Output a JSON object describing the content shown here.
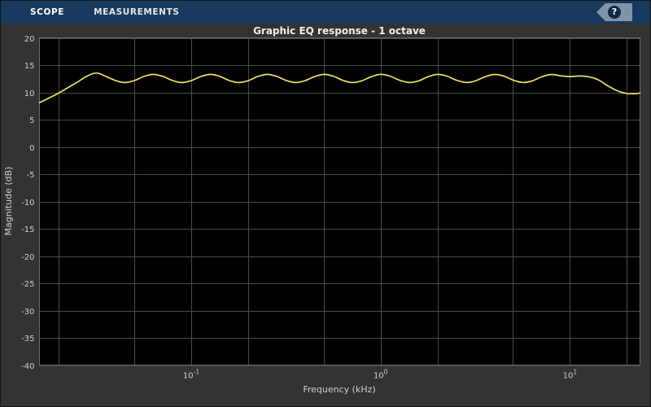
{
  "toolbar": {
    "tabs": [
      {
        "label": "SCOPE",
        "active": true
      },
      {
        "label": "MEASUREMENTS",
        "active": false
      }
    ],
    "help_label": "?"
  },
  "colors": {
    "toolbar_bg": "#173a5e",
    "figure_bg": "#333333",
    "axes_bg": "#000000",
    "grid": "#4a4a4a",
    "axes_box": "#6b6b6b",
    "tick_text": "#cfcfcf",
    "title_text": "#efefef",
    "line": "#f1df63",
    "help_badge_bg": "#7f94aa",
    "help_circle_bg": "#0f2a44"
  },
  "chart_data": {
    "type": "line",
    "title": "Graphic EQ response - 1 octave",
    "xlabel": "Frequency (kHz)",
    "ylabel": "Magnitude (dB)",
    "x_scale": "log",
    "xlim": [
      0.0158,
      23.44
    ],
    "ylim": [
      -40,
      20
    ],
    "y_ticks": [
      20,
      15,
      10,
      5,
      0,
      -5,
      -10,
      -15,
      -20,
      -25,
      -30,
      -35,
      -40
    ],
    "x_ticks": [
      {
        "value": 0.1,
        "label_base": "10",
        "label_exp": "-1"
      },
      {
        "value": 1,
        "label_base": "10",
        "label_exp": "0"
      },
      {
        "value": 10,
        "label_base": "10",
        "label_exp": "1"
      }
    ],
    "x_gridlines": [
      0.02,
      0.05,
      0.1,
      0.2,
      0.5,
      1,
      2,
      5,
      10,
      20
    ],
    "grid": true,
    "legend": "none",
    "series": [
      {
        "name": "EQ response",
        "color": "#f1df63",
        "x": [
          0.0158,
          0.0178,
          0.02,
          0.0224,
          0.0251,
          0.0282,
          0.0316,
          0.0355,
          0.0398,
          0.0447,
          0.0501,
          0.0562,
          0.0631,
          0.0708,
          0.0794,
          0.0891,
          0.1,
          0.1122,
          0.1259,
          0.1413,
          0.1585,
          0.1778,
          0.1995,
          0.2239,
          0.2512,
          0.2818,
          0.3162,
          0.3548,
          0.3981,
          0.4467,
          0.5012,
          0.5623,
          0.631,
          0.7079,
          0.7943,
          0.8913,
          1,
          1.122,
          1.259,
          1.413,
          1.585,
          1.778,
          1.995,
          2.239,
          2.512,
          2.818,
          3.162,
          3.548,
          3.981,
          4.467,
          5.012,
          5.623,
          6.31,
          7.079,
          7.943,
          8.913,
          10,
          11.22,
          12.59,
          14.13,
          15.85,
          17.78,
          19.95,
          22.39,
          23.44
        ],
        "y": [
          8.1,
          9.0,
          9.9,
          10.9,
          11.9,
          13.0,
          13.55,
          12.93,
          12.18,
          11.8,
          12.17,
          12.91,
          13.3,
          12.94,
          12.19,
          11.8,
          12.15,
          12.9,
          13.3,
          12.95,
          12.2,
          11.8,
          12.14,
          12.89,
          13.3,
          12.96,
          12.21,
          11.8,
          12.13,
          12.88,
          13.3,
          12.97,
          12.22,
          11.81,
          12.12,
          12.87,
          13.3,
          12.98,
          12.23,
          11.81,
          12.11,
          12.86,
          13.3,
          12.99,
          12.24,
          11.82,
          12.1,
          12.85,
          13.29,
          13.0,
          12.25,
          11.82,
          12.09,
          12.84,
          13.29,
          13.05,
          12.9,
          13.0,
          12.85,
          12.3,
          11.2,
          10.3,
          9.8,
          9.78,
          9.9
        ]
      }
    ]
  }
}
